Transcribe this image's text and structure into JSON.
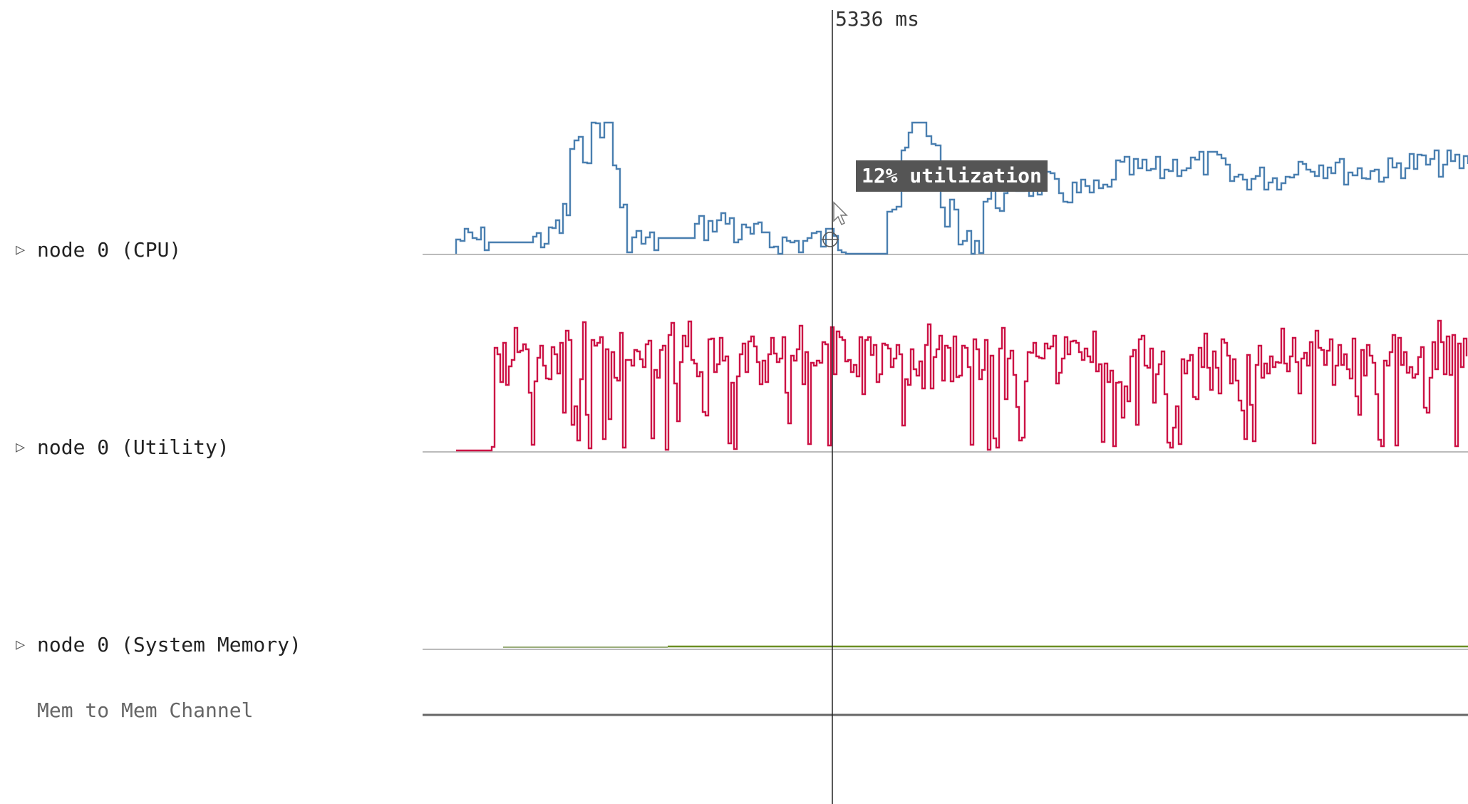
{
  "cursor": {
    "time_label": "5336 ms"
  },
  "tooltip": {
    "text": "12% utilization"
  },
  "rows": [
    {
      "id": "cpu",
      "label": "node 0 (CPU)",
      "expandable": true,
      "color": "#4a7fb0"
    },
    {
      "id": "utility",
      "label": "node 0 (Utility)",
      "expandable": true,
      "color": "#cc1144"
    },
    {
      "id": "sysmem",
      "label": "node 0 (System Memory)",
      "expandable": true,
      "color": "#6b8e23"
    },
    {
      "id": "channel",
      "label": "Mem to Mem Channel",
      "expandable": false,
      "color": "#666666"
    }
  ],
  "icons": {
    "expand": "triangle-right-icon",
    "cursor": "arrow-cursor-icon"
  },
  "tri_glyph": "▷"
}
